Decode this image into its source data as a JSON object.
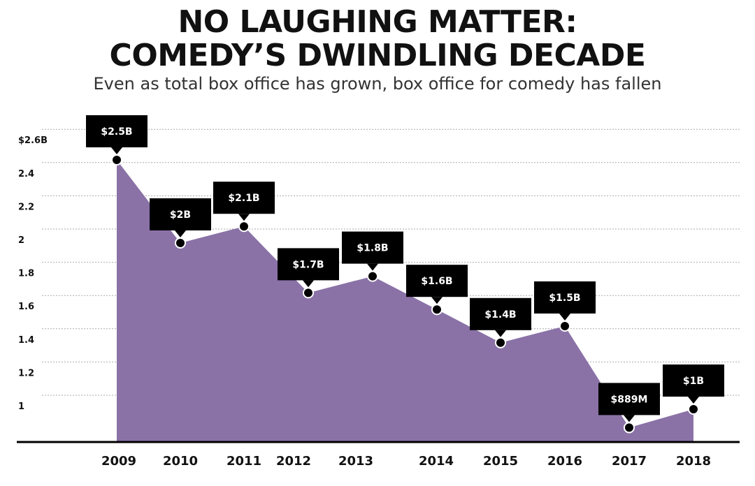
{
  "header": {
    "title_line1": "NO LAUGHING MATTER:",
    "title_line2": "COMEDY’S DWINDLING DECADE",
    "subtitle": "Even as total box office has grown, box office for comedy has fallen"
  },
  "colors": {
    "area": "#8a72a7",
    "label_bg": "#000000",
    "label_text": "#ffffff",
    "grid": "#a9a9a9",
    "baseline": "#000000"
  },
  "chart_data": {
    "type": "area",
    "x": [
      "2009",
      "2010",
      "2011",
      "2012",
      "2013",
      "2014",
      "2015",
      "2016",
      "2017",
      "2018"
    ],
    "values": [
      2.5,
      2.0,
      2.1,
      1.7,
      1.8,
      1.6,
      1.4,
      1.5,
      0.889,
      1.0
    ],
    "data_labels": [
      "$2.5B",
      "$2B",
      "$2.1B",
      "$1.7B",
      "$1.8B",
      "$1.6B",
      "$1.4B",
      "$1.5B",
      "$889M",
      "$1B"
    ],
    "yticks": [
      1,
      1.2,
      1.4,
      1.6,
      1.8,
      2,
      2.2,
      2.4,
      2.6
    ],
    "ytick_labels": [
      "1",
      "1.2",
      "1.4",
      "1.6",
      "1.8",
      "2",
      "2.2",
      "2.4",
      "$2.6B"
    ],
    "grid": true
  }
}
